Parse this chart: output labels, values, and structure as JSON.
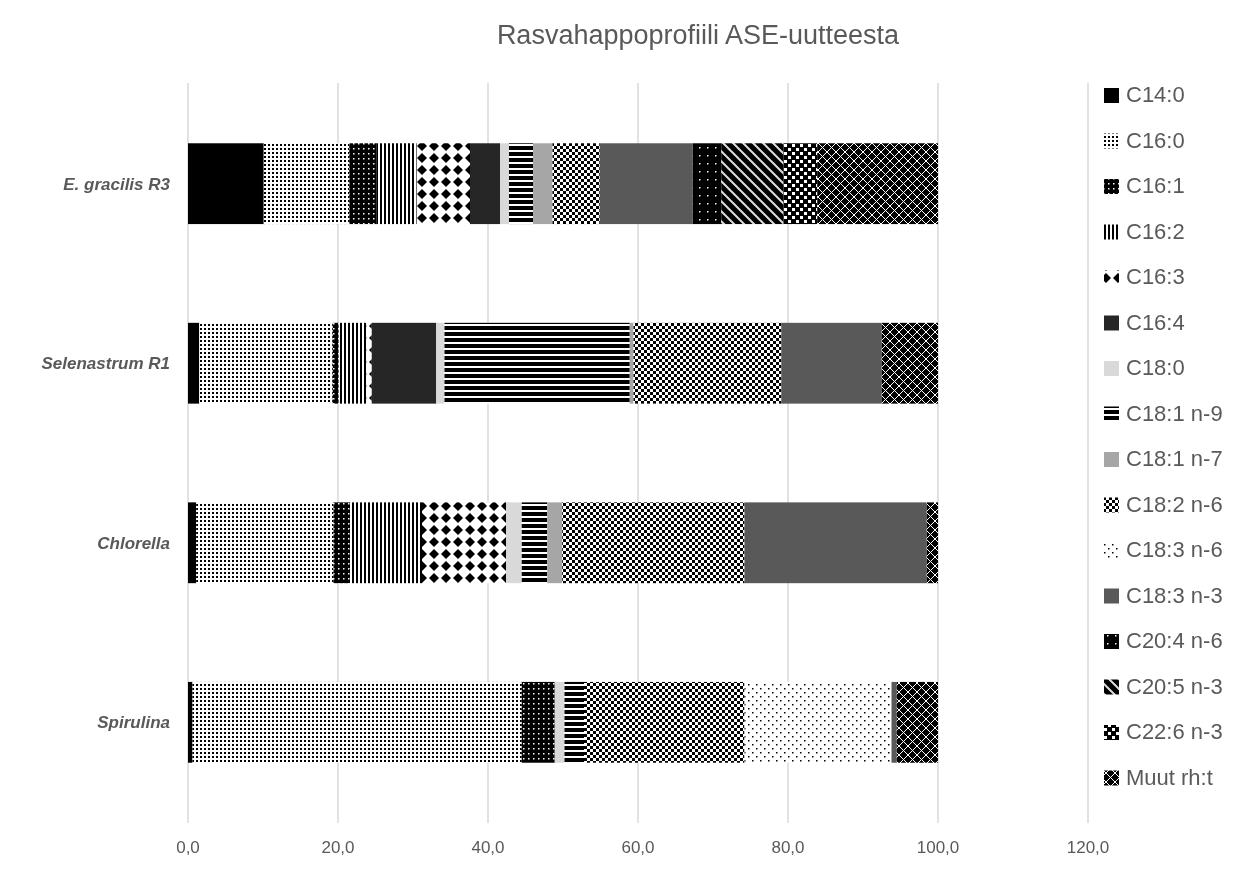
{
  "chart_data": {
    "type": "bar",
    "orientation": "horizontal",
    "stacked": true,
    "title": "Rasvahappoprofiili ASE-uutteesta",
    "categories": [
      "E. gracilis R3",
      "Selenastrum R1",
      "Chlorella",
      "Spirulina"
    ],
    "xlim": [
      0,
      120
    ],
    "xticks": [
      {
        "value": 0,
        "label": "0,0"
      },
      {
        "value": 20,
        "label": "20,0"
      },
      {
        "value": 40,
        "label": "40,0"
      },
      {
        "value": 60,
        "label": "60,0"
      },
      {
        "value": 80,
        "label": "80,0"
      },
      {
        "value": 100,
        "label": "100,0"
      },
      {
        "value": 120,
        "label": "120,0"
      }
    ],
    "grid": "x",
    "legend": "right",
    "series": [
      {
        "name": "C14:0",
        "color": "#000000",
        "values": [
          10.1,
          1.5,
          1.1,
          0.6
        ]
      },
      {
        "name": "C16:0",
        "color": "#000000",
        "values": [
          11.4,
          17.8,
          18.3,
          43.9
        ]
      },
      {
        "name": "C16:1",
        "color": "#000000",
        "values": [
          3.6,
          0.8,
          2.2,
          4.4
        ]
      },
      {
        "name": "C16:2",
        "color": "#000000",
        "values": [
          5.4,
          3.7,
          9.6,
          0
        ]
      },
      {
        "name": "C16:3",
        "color": "#000000",
        "values": [
          7.1,
          0.7,
          11.2,
          0
        ]
      },
      {
        "name": "C16:4",
        "color": "#262626",
        "values": [
          4.0,
          8.6,
          0,
          0
        ]
      },
      {
        "name": "C18:0",
        "color": "#d9d9d9",
        "values": [
          1.2,
          1.1,
          2.1,
          1.3
        ]
      },
      {
        "name": "C18:1 n-9",
        "color": "#000000",
        "values": [
          3.2,
          24.7,
          3.4,
          2.6
        ]
      },
      {
        "name": "C18:1 n-7",
        "color": "#a6a6a6",
        "values": [
          2.6,
          0.5,
          2.0,
          0
        ]
      },
      {
        "name": "C18:2 n-6",
        "color": "#000000",
        "values": [
          6.3,
          19.7,
          24.3,
          21.4
        ]
      },
      {
        "name": "C18:3 n-6",
        "color": "#000000",
        "values": [
          0,
          0,
          0,
          19.6
        ]
      },
      {
        "name": "C18:3 n-3",
        "color": "#595959",
        "values": [
          12.4,
          13.4,
          24.3,
          0.7
        ]
      },
      {
        "name": "C20:4 n-6",
        "color": "#000000",
        "values": [
          3.8,
          0,
          0,
          0
        ]
      },
      {
        "name": "C20:5 n-3",
        "color": "#000000",
        "values": [
          8.3,
          0,
          0,
          0
        ]
      },
      {
        "name": "C22:6 n-3",
        "color": "#000000",
        "values": [
          4.5,
          0,
          0,
          0
        ]
      },
      {
        "name": "Muut rh:t",
        "color": "#000000",
        "values": [
          16.1,
          7.5,
          1.5,
          5.5
        ]
      }
    ]
  }
}
